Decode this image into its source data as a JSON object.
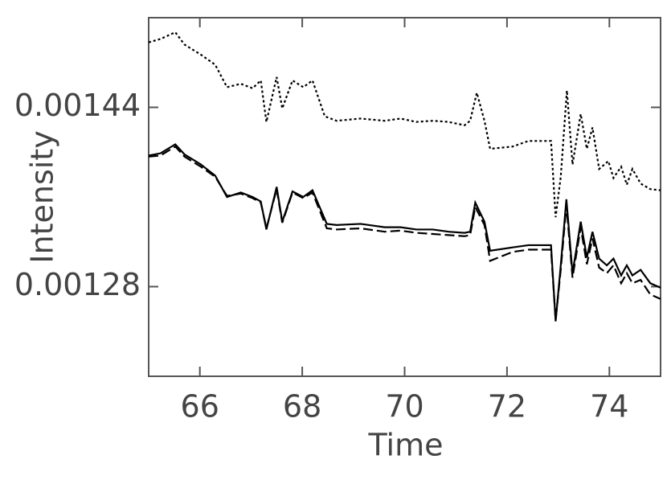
{
  "chart_data": {
    "type": "line",
    "x_label": "Time",
    "y_label": "Intensity",
    "xlim": [
      65,
      75
    ],
    "xticks": [
      66,
      68,
      70,
      72,
      74
    ],
    "ylim": [
      0.0012,
      0.00152
    ],
    "yticks": [
      0.00128,
      0.00144
    ],
    "series": [
      {
        "color": "#000000",
        "dash": "dotted",
        "x": [
          65,
          65.23,
          65.52,
          65.7,
          66.02,
          66.3,
          66.53,
          66.8,
          67.03,
          67.19,
          67.3,
          67.5,
          67.61,
          67.81,
          68.02,
          68.2,
          68.44,
          68.67,
          69.14,
          69.61,
          69.92,
          70.23,
          70.55,
          70.86,
          71.17,
          71.28,
          71.41,
          71.56,
          71.67,
          72.11,
          72.42,
          72.86,
          72.95,
          73.05,
          73.17,
          73.28,
          73.44,
          73.56,
          73.67,
          73.8,
          73.98,
          74.08,
          74.23,
          74.34,
          74.45,
          74.61,
          74.8,
          75
        ],
        "values": [
          0.001498,
          0.001501,
          0.001507,
          0.001496,
          0.001487,
          0.001478,
          0.001458,
          0.001461,
          0.001457,
          0.001464,
          0.001427,
          0.001467,
          0.001439,
          0.001464,
          0.001458,
          0.001464,
          0.001432,
          0.001428,
          0.00143,
          0.001428,
          0.00143,
          0.001427,
          0.001428,
          0.001427,
          0.001424,
          0.001428,
          0.001453,
          0.001428,
          0.001403,
          0.001405,
          0.00141,
          0.00141,
          0.001342,
          0.001378,
          0.001455,
          0.001389,
          0.001434,
          0.001403,
          0.001422,
          0.001385,
          0.001392,
          0.001377,
          0.001387,
          0.001371,
          0.001385,
          0.001372,
          0.001367,
          0.001366
        ]
      },
      {
        "color": "#000000",
        "dash": "solid",
        "x": [
          65,
          65.23,
          65.52,
          65.7,
          66.02,
          66.3,
          66.53,
          66.8,
          67.03,
          67.19,
          67.3,
          67.5,
          67.61,
          67.81,
          68.02,
          68.2,
          68.48,
          68.67,
          69.14,
          69.61,
          69.92,
          70.23,
          70.55,
          70.86,
          71.17,
          71.28,
          71.38,
          71.56,
          71.67,
          72.11,
          72.42,
          72.86,
          72.95,
          73.05,
          73.16,
          73.28,
          73.44,
          73.56,
          73.67,
          73.8,
          73.95,
          74.08,
          74.23,
          74.34,
          74.45,
          74.61,
          74.8,
          75
        ],
        "values": [
          0.001397,
          0.001399,
          0.001407,
          0.001398,
          0.001389,
          0.001379,
          0.00136,
          0.001364,
          0.00136,
          0.001356,
          0.001331,
          0.001369,
          0.001338,
          0.001365,
          0.00136,
          0.001366,
          0.001336,
          0.001335,
          0.001336,
          0.001333,
          0.001333,
          0.001331,
          0.001331,
          0.001329,
          0.001328,
          0.001329,
          0.001355,
          0.001338,
          0.001312,
          0.001315,
          0.001317,
          0.001317,
          0.001249,
          0.001299,
          0.001358,
          0.001292,
          0.001338,
          0.001306,
          0.001329,
          0.001305,
          0.001299,
          0.001305,
          0.00129,
          0.001299,
          0.00129,
          0.001295,
          0.001283,
          0.001279
        ]
      },
      {
        "color": "#000000",
        "dash": "dashed",
        "x": [
          65,
          65.23,
          65.52,
          65.7,
          66.02,
          66.3,
          66.53,
          66.8,
          67.03,
          67.19,
          67.3,
          67.5,
          67.61,
          67.81,
          68.02,
          68.2,
          68.48,
          68.67,
          69.14,
          69.61,
          69.92,
          70.23,
          70.55,
          70.86,
          71.17,
          71.28,
          71.38,
          71.56,
          71.67,
          72.11,
          72.42,
          72.86,
          72.95,
          73.05,
          73.16,
          73.28,
          73.44,
          73.56,
          73.67,
          73.8,
          73.95,
          74.08,
          74.23,
          74.34,
          74.45,
          74.61,
          74.8,
          75
        ],
        "values": [
          0.001396,
          0.001397,
          0.001405,
          0.001396,
          0.001387,
          0.001378,
          0.001361,
          0.001363,
          0.001359,
          0.001355,
          0.001332,
          0.001367,
          0.001337,
          0.001364,
          0.001359,
          0.001364,
          0.001332,
          0.001331,
          0.001332,
          0.001329,
          0.00133,
          0.001328,
          0.001327,
          0.001326,
          0.001325,
          0.001326,
          0.001351,
          0.001335,
          0.001303,
          0.001311,
          0.001313,
          0.001313,
          0.00125,
          0.001295,
          0.001353,
          0.001288,
          0.001333,
          0.0013,
          0.001323,
          0.001297,
          0.001292,
          0.001299,
          0.001283,
          0.001292,
          0.001283,
          0.001286,
          0.001273,
          0.001269
        ]
      }
    ]
  }
}
